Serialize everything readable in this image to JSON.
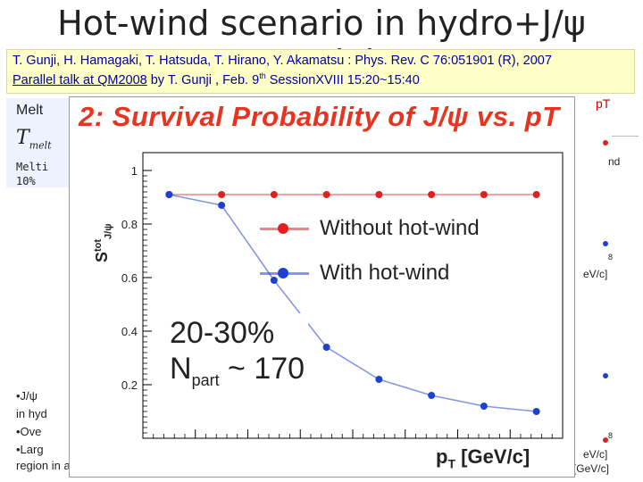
{
  "slide": {
    "title": "Hot-wind scenario in hydro+J/ψ model"
  },
  "reference": {
    "line1": "T. Gunji, H. Hamagaki, T. Hatsuda, T. Hirano, Y. Akamatsu : Phys. Rev. C 76:051901 (R), 2007",
    "line2_link": "Parallel talk at QM2008",
    "line2_rest": " by T. Gunji , Feb. 9",
    "line2_sup": "th",
    "line2_end": " SessionXVIII 15:20~15:40"
  },
  "background_fragments": {
    "melt": "Melt",
    "t_melt": "T",
    "t_melt_sub": "melt",
    "melti": "Melti",
    "ten_pct": "10%",
    "pt_label": "pT",
    "nd": "nd",
    "bullet1": "•J/ψ",
    "bullet1b": "in hyd",
    "bullet2": "•Ove",
    "bullet3": "•Larg",
    "bottom_line": "region in a scenario with hot wind.",
    "gevc": "eV/c]",
    "gevc2": "eV/c]",
    "pt_gevc": "p",
    "pt_gevc_sub": "T",
    "pt_gevc_rest": " [GeV/c]",
    "eight": "8",
    "eight2": "8"
  },
  "inset": {
    "title": "2: Survival Probability of J/ψ vs.  pT",
    "annotation_line1": "20-30%",
    "annotation_line2_a": "N",
    "annotation_line2_sub": "part",
    "annotation_line2_b": " ~ 170"
  },
  "chart_data": {
    "type": "line",
    "xlabel": "p_T [GeV/c]",
    "ylabel": "S_J/ψ^tot",
    "xlim": [
      0,
      8
    ],
    "ylim": [
      0,
      1.0
    ],
    "xlabel_text": "p",
    "xlabel_sub": "T",
    "xlabel_rest": " [GeV/c]",
    "ylabel_text": "S",
    "ylabel_sup": "tot",
    "ylabel_sub": "J/ψ",
    "y_ticks": [
      "0.2",
      "0.4",
      "0.6",
      "0.8",
      "1"
    ],
    "x": [
      0.5,
      1.5,
      2.5,
      3.5,
      4.5,
      5.5,
      6.5,
      7.5
    ],
    "series": [
      {
        "name": "Without hot-wind",
        "color": "#e02020",
        "values": [
          0.91,
          0.91,
          0.91,
          0.91,
          0.91,
          0.91,
          0.91,
          0.91
        ]
      },
      {
        "name": "With hot-wind",
        "color": "#2040d0",
        "values": [
          0.91,
          0.87,
          0.59,
          0.34,
          0.22,
          0.16,
          0.12,
          0.1
        ]
      }
    ]
  }
}
